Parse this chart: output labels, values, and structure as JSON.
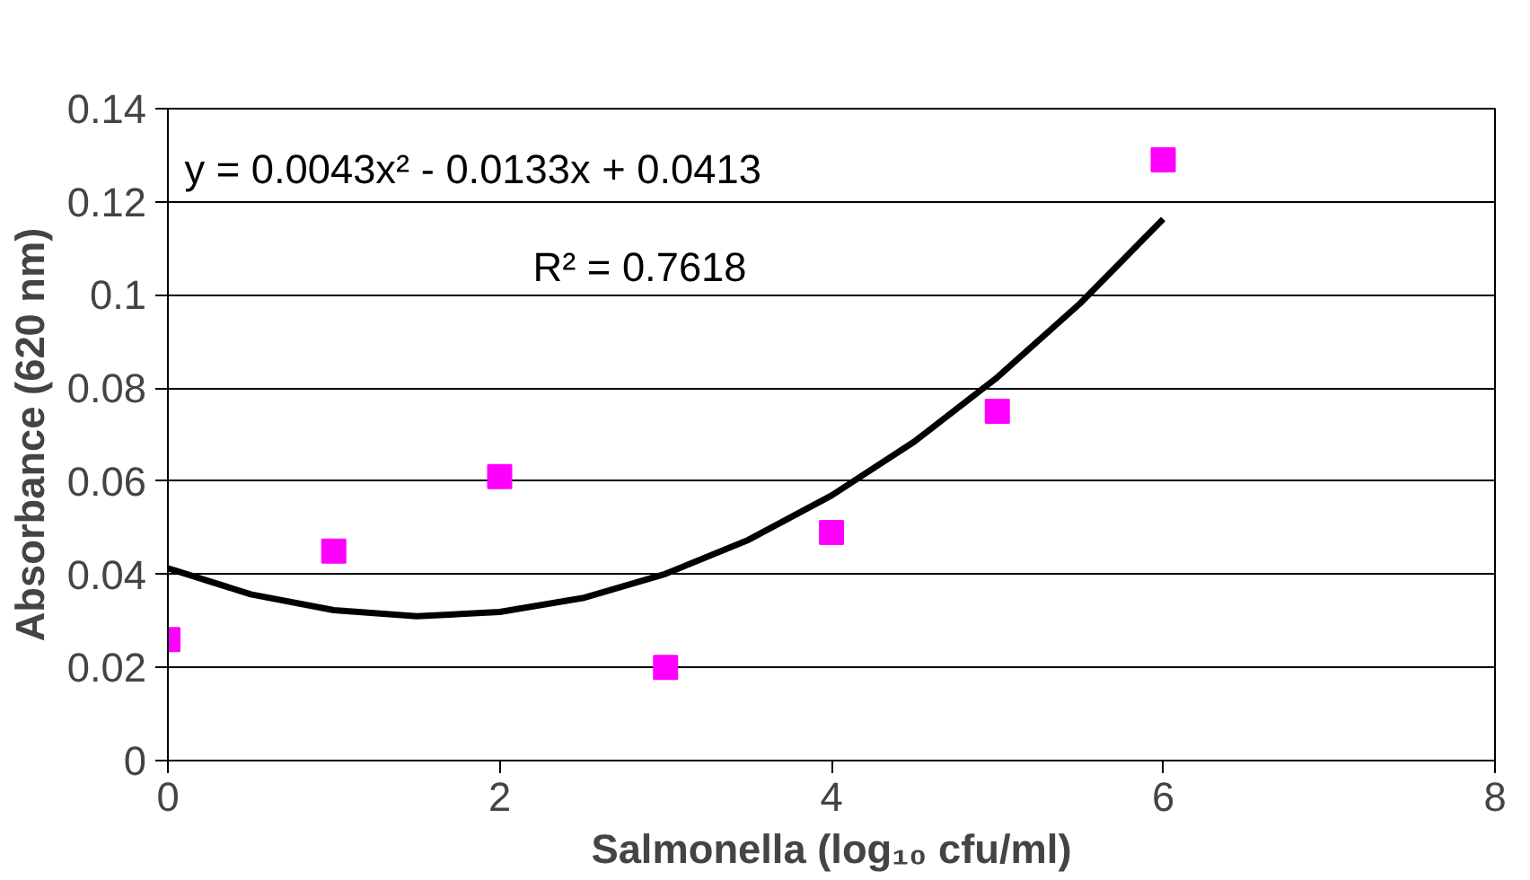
{
  "chart_data": {
    "type": "scatter",
    "xlabel": "Salmonella (log₁₀ cfu/ml)",
    "ylabel": "Absorbance (620 nm)",
    "x": [
      0,
      1,
      2,
      3,
      4,
      5,
      6
    ],
    "series": [
      {
        "color": "#ff00ff",
        "marker": "square",
        "values": [
          0.026,
          0.045,
          0.061,
          0.02,
          0.049,
          0.075,
          0.129
        ]
      },
      {
        "type": "line",
        "color": "#000000",
        "line_style": "solid",
        "x": [
          0,
          0.5,
          1,
          1.5,
          2,
          2.5,
          3,
          3.5,
          4,
          4.5,
          5,
          5.5,
          6
        ],
        "values": [
          0.0413,
          0.0357,
          0.0323,
          0.031,
          0.0319,
          0.0349,
          0.0401,
          0.0474,
          0.0569,
          0.0685,
          0.0823,
          0.0982,
          0.1163
        ]
      }
    ],
    "annotations": [
      "y = 0.0043x² - 0.0133x + 0.0413",
      "R² = 0.7618"
    ],
    "xlim": [
      0,
      8
    ],
    "xticks": [
      0,
      2,
      4,
      6,
      8
    ],
    "ylim": [
      0,
      0.14
    ],
    "yticks": [
      0,
      {
        "value": 0.02,
        "label": "0.02"
      },
      {
        "value": 0.04,
        "label": "0.04"
      },
      {
        "value": 0.06,
        "label": "0.06"
      },
      {
        "value": 0.08,
        "label": "0.08"
      },
      {
        "value": 0.1,
        "label": "0.1"
      },
      {
        "value": 0.12,
        "label": "0.12"
      },
      {
        "value": 0.14,
        "label": "0.14"
      }
    ],
    "grid": "y"
  }
}
